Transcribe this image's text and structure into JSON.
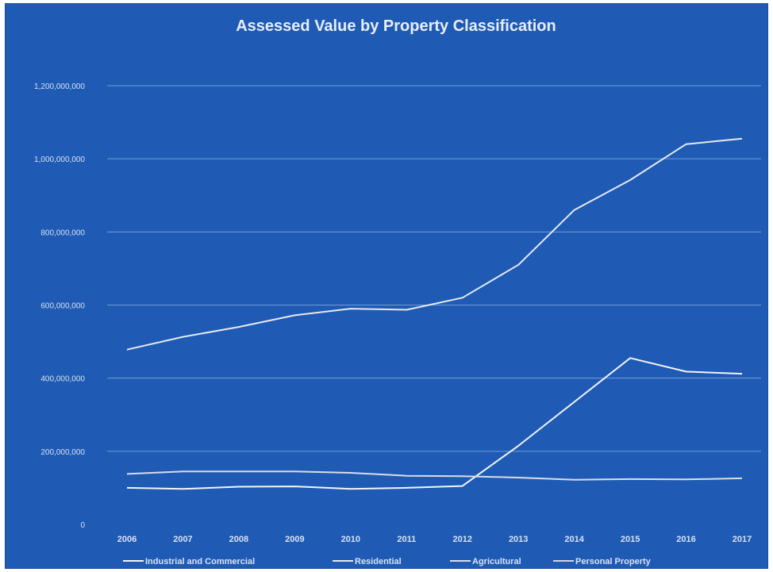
{
  "chart_data": {
    "type": "line",
    "title": "Assessed Value by Property Classification",
    "xlabel": "",
    "ylabel": "",
    "categories": [
      "2006",
      "2007",
      "2008",
      "2009",
      "2010",
      "2011",
      "2012",
      "2013",
      "2014",
      "2015",
      "2016",
      "2017"
    ],
    "ylim": [
      0,
      1200000000
    ],
    "yticks": [
      0,
      200000000,
      400000000,
      600000000,
      800000000,
      1000000000,
      1200000000
    ],
    "ytick_labels": [
      "0",
      "200,000,000",
      "400,000,000",
      "600,000,000",
      "800,000,000",
      "1,000,000,000",
      "1,200,000,000"
    ],
    "grid": true,
    "legend_position": "bottom",
    "series": [
      {
        "name": "Industrial and Commercial",
        "color": "#f2f4f8",
        "values": [
          100000000,
          97000000,
          103000000,
          104000000,
          97000000,
          100000000,
          105000000,
          215000000,
          335000000,
          455000000,
          418000000,
          412000000
        ]
      },
      {
        "name": "Residential",
        "color": "#e6e9ef",
        "values": [
          478000000,
          513000000,
          540000000,
          572000000,
          590000000,
          587000000,
          620000000,
          710000000,
          860000000,
          942000000,
          1040000000,
          1055000000
        ]
      },
      {
        "name": "Agricultural",
        "color": "#d9dde6",
        "values": [
          138000000,
          145000000,
          145000000,
          145000000,
          141000000,
          133000000,
          132000000,
          128000000,
          122000000,
          124000000,
          123000000,
          126000000
        ]
      },
      {
        "name": "Personal Property",
        "color": "#cfd5e2",
        "values": [
          null,
          null,
          null,
          null,
          null,
          null,
          null,
          null,
          null,
          null,
          null,
          null
        ]
      }
    ]
  }
}
